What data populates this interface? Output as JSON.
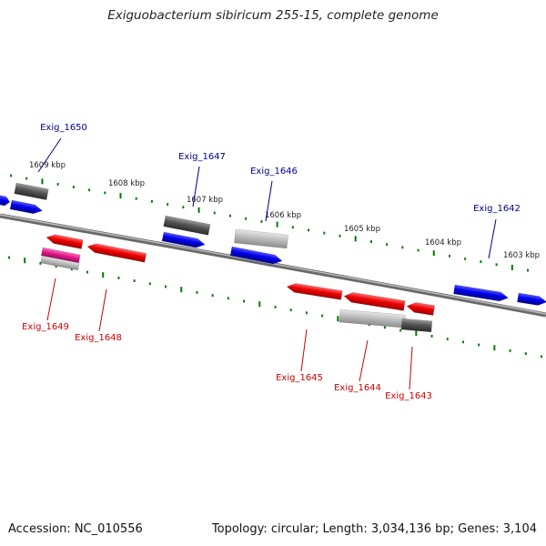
{
  "title": "Exiguobacterium sibiricum 255-15, complete genome",
  "footer": {
    "accession": "Accession: NC_010556",
    "summary": "Topology: circular; Length: 3,034,136 bp; Genes: 3,104"
  },
  "colors": {
    "forward_gene": "#0000ee",
    "reverse_gene": "#ee0000",
    "forward_label": "#00008b",
    "reverse_label": "#cc0000",
    "tick": "#007a00",
    "backbone": "#808080",
    "gray_dark": "#505050",
    "gray_light": "#b8b8b8",
    "pink": "#e0188a"
  },
  "kbp_ticks": [
    "1609 kbp",
    "1608 kbp",
    "1607 kbp",
    "1606 kbp",
    "1605 kbp",
    "1604 kbp",
    "1603 kbp"
  ],
  "gene_labels_top": [
    "Exig_1650",
    "Exig_1647",
    "Exig_1646",
    "Exig_1642"
  ],
  "gene_labels_bottom": [
    "Exig_1649",
    "Exig_1648",
    "Exig_1645",
    "Exig_1644",
    "Exig_1643"
  ]
}
